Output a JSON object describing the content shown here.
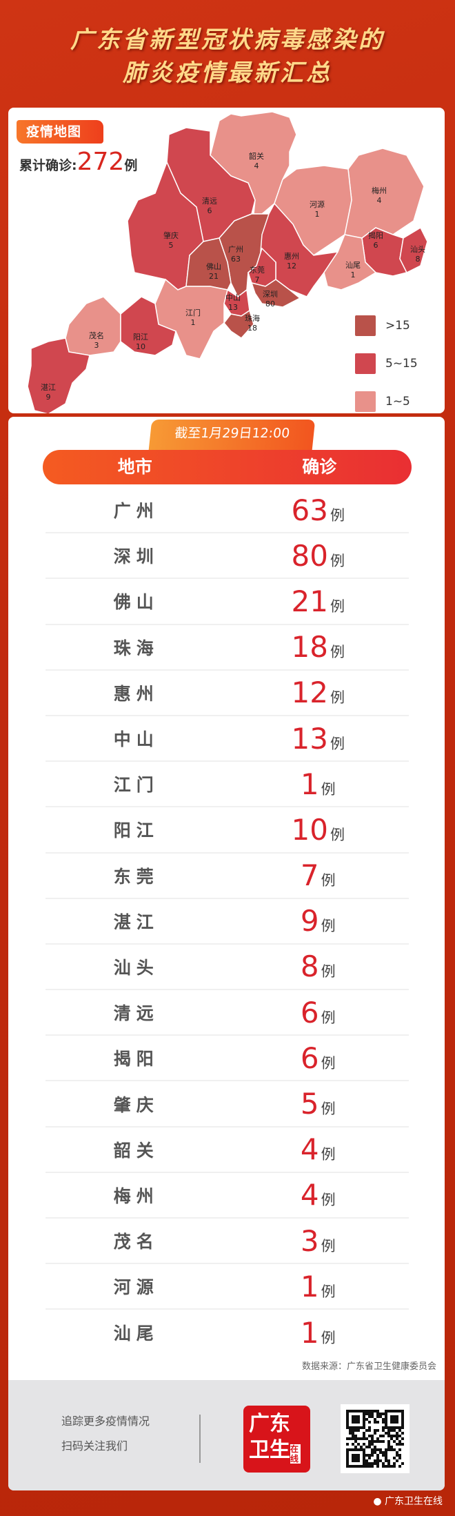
{
  "title": {
    "line1": "广东省新型冠状病毒感染的",
    "line2": "肺炎疫情最新汇总"
  },
  "map": {
    "tag": "疫情地图",
    "total_label": "累计确诊:",
    "total_value": "272",
    "total_unit": "例",
    "colors": {
      "high": "#b9524a",
      "mid": "#d0474f",
      "low": "#e8918a",
      "none": "#f6eef2"
    },
    "legend": [
      {
        "label": ">15",
        "color": "#b9524a"
      },
      {
        "label": "5~15",
        "color": "#d0474f"
      },
      {
        "label": "1~5",
        "color": "#e8918a"
      }
    ],
    "regions": [
      {
        "name": "韶关",
        "value": "4"
      },
      {
        "name": "梅州",
        "value": "4"
      },
      {
        "name": "河源",
        "value": "1"
      },
      {
        "name": "清远",
        "value": "6"
      },
      {
        "name": "肇庆",
        "value": "5"
      },
      {
        "name": "广州",
        "value": "63"
      },
      {
        "name": "揭阳",
        "value": "6"
      },
      {
        "name": "汕头",
        "value": "8"
      },
      {
        "name": "惠州",
        "value": "12"
      },
      {
        "name": "佛山",
        "value": "21"
      },
      {
        "name": "东莞",
        "value": "7"
      },
      {
        "name": "汕尾",
        "value": "1"
      },
      {
        "name": "中山",
        "value": "13"
      },
      {
        "name": "深圳",
        "value": "80"
      },
      {
        "name": "江门",
        "value": "1"
      },
      {
        "name": "珠海",
        "value": "18"
      },
      {
        "name": "茂名",
        "value": "3"
      },
      {
        "name": "阳江",
        "value": "10"
      },
      {
        "name": "湛江",
        "value": "9"
      }
    ]
  },
  "table": {
    "date": "截至1月29日12:00",
    "headers": [
      "地市",
      "确诊"
    ],
    "unit": "例",
    "rows": [
      {
        "city": "广州",
        "count": "63"
      },
      {
        "city": "深圳",
        "count": "80"
      },
      {
        "city": "佛山",
        "count": "21"
      },
      {
        "city": "珠海",
        "count": "18"
      },
      {
        "city": "惠州",
        "count": "12"
      },
      {
        "city": "中山",
        "count": "13"
      },
      {
        "city": "江门",
        "count": "1"
      },
      {
        "city": "阳江",
        "count": "10"
      },
      {
        "city": "东莞",
        "count": "7"
      },
      {
        "city": "湛江",
        "count": "9"
      },
      {
        "city": "汕头",
        "count": "8"
      },
      {
        "city": "清远",
        "count": "6"
      },
      {
        "city": "揭阳",
        "count": "6"
      },
      {
        "city": "肇庆",
        "count": "5"
      },
      {
        "city": "韶关",
        "count": "4"
      },
      {
        "city": "梅州",
        "count": "4"
      },
      {
        "city": "茂名",
        "count": "3"
      },
      {
        "city": "河源",
        "count": "1"
      },
      {
        "city": "汕尾",
        "count": "1"
      }
    ],
    "source": "数据来源：广东省卫生健康委员会"
  },
  "footer": {
    "line1": "追踪更多疫情情况",
    "line2": "扫码关注我们",
    "logo_text": "广东卫生在线",
    "watermark": "广东卫生在线"
  }
}
